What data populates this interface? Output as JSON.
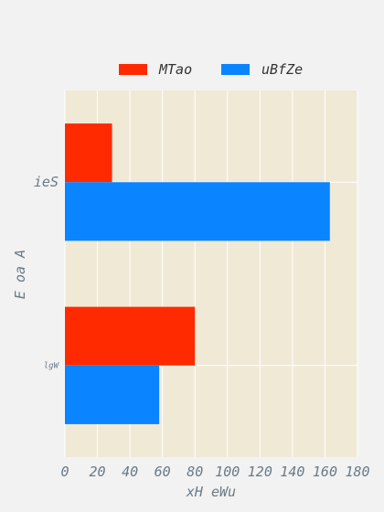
{
  "chart_data": {
    "type": "bar",
    "orientation": "horizontal",
    "title": "",
    "xlabel": "xH eWu",
    "ylabel": "E oa A",
    "categories": [
      "ieS",
      "lgW"
    ],
    "series": [
      {
        "name": "MTao",
        "color": "#ff2a00",
        "values": [
          29,
          80
        ]
      },
      {
        "name": "uBfZe",
        "color": "#0a84ff",
        "values": [
          163,
          58
        ]
      }
    ],
    "xlim": [
      0,
      180
    ],
    "xticks": [
      0,
      20,
      40,
      60,
      80,
      100,
      120,
      140,
      160,
      180
    ],
    "grid": true,
    "legend_position": "top-center",
    "plot_background": "#f0e9d6",
    "page_background": "#f2f2f2"
  }
}
